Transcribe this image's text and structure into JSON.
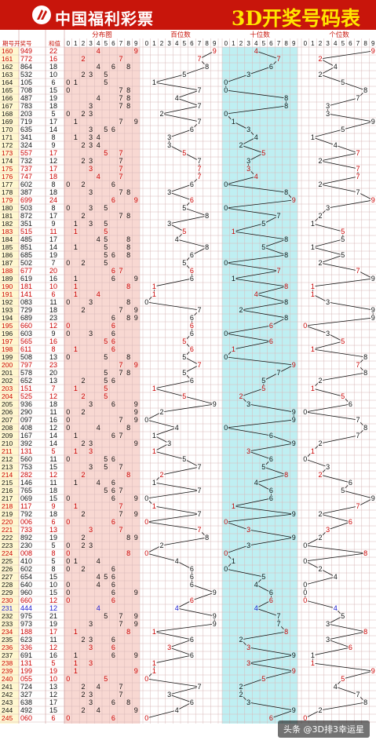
{
  "header": {
    "brand_text": "中国福利彩票",
    "title": "3D开奖号码表",
    "logo_icon": "welfare-lottery-logo-icon",
    "bg_color": "#c8150b",
    "title_color": "#ffe600"
  },
  "chart_data": {
    "type": "table",
    "columns": {
      "period": "期号",
      "winning_number": "开奖号",
      "sum_value": "和值",
      "distribution": "分布图",
      "hundreds": "百位数",
      "tens": "十位数",
      "units": "个位数"
    },
    "digit_headers": [
      "0",
      "1",
      "2",
      "3",
      "4",
      "5",
      "6",
      "7",
      "8",
      "9"
    ],
    "rows": [
      [
        "160",
        "949",
        "22"
      ],
      [
        "161",
        "772",
        "16"
      ],
      [
        "162",
        "864",
        "18"
      ],
      [
        "163",
        "532",
        "10"
      ],
      [
        "164",
        "105",
        "6"
      ],
      [
        "165",
        "708",
        "15"
      ],
      [
        "166",
        "487",
        "19"
      ],
      [
        "167",
        "783",
        "18"
      ],
      [
        "168",
        "203",
        "5"
      ],
      [
        "169",
        "719",
        "17"
      ],
      [
        "170",
        "635",
        "14"
      ],
      [
        "171",
        "341",
        "8"
      ],
      [
        "172",
        "324",
        "9"
      ],
      [
        "173",
        "557",
        "17"
      ],
      [
        "174",
        "732",
        "12"
      ],
      [
        "175",
        "737",
        "17"
      ],
      [
        "176",
        "747",
        "18"
      ],
      [
        "177",
        "602",
        "8"
      ],
      [
        "178",
        "387",
        "18"
      ],
      [
        "179",
        "699",
        "24"
      ],
      [
        "180",
        "503",
        "8"
      ],
      [
        "181",
        "872",
        "17"
      ],
      [
        "182",
        "351",
        "9"
      ],
      [
        "183",
        "515",
        "11"
      ],
      [
        "184",
        "485",
        "17"
      ],
      [
        "185",
        "851",
        "14"
      ],
      [
        "186",
        "685",
        "19"
      ],
      [
        "187",
        "502",
        "7"
      ],
      [
        "188",
        "677",
        "20"
      ],
      [
        "189",
        "619",
        "16"
      ],
      [
        "190",
        "181",
        "10"
      ],
      [
        "191",
        "141",
        "6"
      ],
      [
        "192",
        "083",
        "11"
      ],
      [
        "193",
        "729",
        "18"
      ],
      [
        "194",
        "689",
        "23"
      ],
      [
        "195",
        "660",
        "12"
      ],
      [
        "196",
        "603",
        "9"
      ],
      [
        "197",
        "565",
        "16"
      ],
      [
        "198",
        "611",
        "8"
      ],
      [
        "199",
        "508",
        "13"
      ],
      [
        "200",
        "797",
        "23"
      ],
      [
        "201",
        "578",
        "20"
      ],
      [
        "202",
        "652",
        "13"
      ],
      [
        "203",
        "151",
        "7"
      ],
      [
        "204",
        "525",
        "12"
      ],
      [
        "205",
        "936",
        "18"
      ],
      [
        "206",
        "290",
        "11"
      ],
      [
        "207",
        "097",
        "16"
      ],
      [
        "208",
        "408",
        "12"
      ],
      [
        "209",
        "167",
        "14"
      ],
      [
        "210",
        "392",
        "14"
      ],
      [
        "211",
        "131",
        "5"
      ],
      [
        "212",
        "560",
        "11"
      ],
      [
        "213",
        "753",
        "15"
      ],
      [
        "214",
        "282",
        "12"
      ],
      [
        "215",
        "146",
        "11"
      ],
      [
        "216",
        "765",
        "18"
      ],
      [
        "217",
        "069",
        "15"
      ],
      [
        "218",
        "117",
        "9"
      ],
      [
        "219",
        "792",
        "18"
      ],
      [
        "220",
        "006",
        "6"
      ],
      [
        "221",
        "733",
        "13"
      ],
      [
        "222",
        "892",
        "19"
      ],
      [
        "223",
        "230",
        "5"
      ],
      [
        "224",
        "008",
        "8"
      ],
      [
        "225",
        "410",
        "5"
      ],
      [
        "226",
        "602",
        "8"
      ],
      [
        "227",
        "654",
        "15"
      ],
      [
        "228",
        "640",
        "10"
      ],
      [
        "229",
        "960",
        "15"
      ],
      [
        "230",
        "660",
        "12"
      ],
      [
        "231",
        "444",
        "12"
      ],
      [
        "232",
        "975",
        "21"
      ],
      [
        "233",
        "973",
        "19"
      ],
      [
        "234",
        "188",
        "17"
      ],
      [
        "235",
        "623",
        "11"
      ],
      [
        "236",
        "336",
        "12"
      ],
      [
        "237",
        "691",
        "16"
      ],
      [
        "238",
        "131",
        "5"
      ],
      [
        "239",
        "199",
        "19"
      ],
      [
        "240",
        "055",
        "10"
      ],
      [
        "241",
        "724",
        "13"
      ],
      [
        "242",
        "327",
        "12"
      ],
      [
        "243",
        "638",
        "17"
      ],
      [
        "244",
        "492",
        "15"
      ],
      [
        "245",
        "060",
        "6"
      ]
    ],
    "colors": {
      "group_color": "#cc0000",
      "triple_color": "#1a1ad0",
      "dist_bg": "#f8d8d2",
      "tens_bg": "#bfeff2",
      "header_bg": "#f5cece"
    }
  },
  "watermark": "头条 @3D排3幸运星"
}
